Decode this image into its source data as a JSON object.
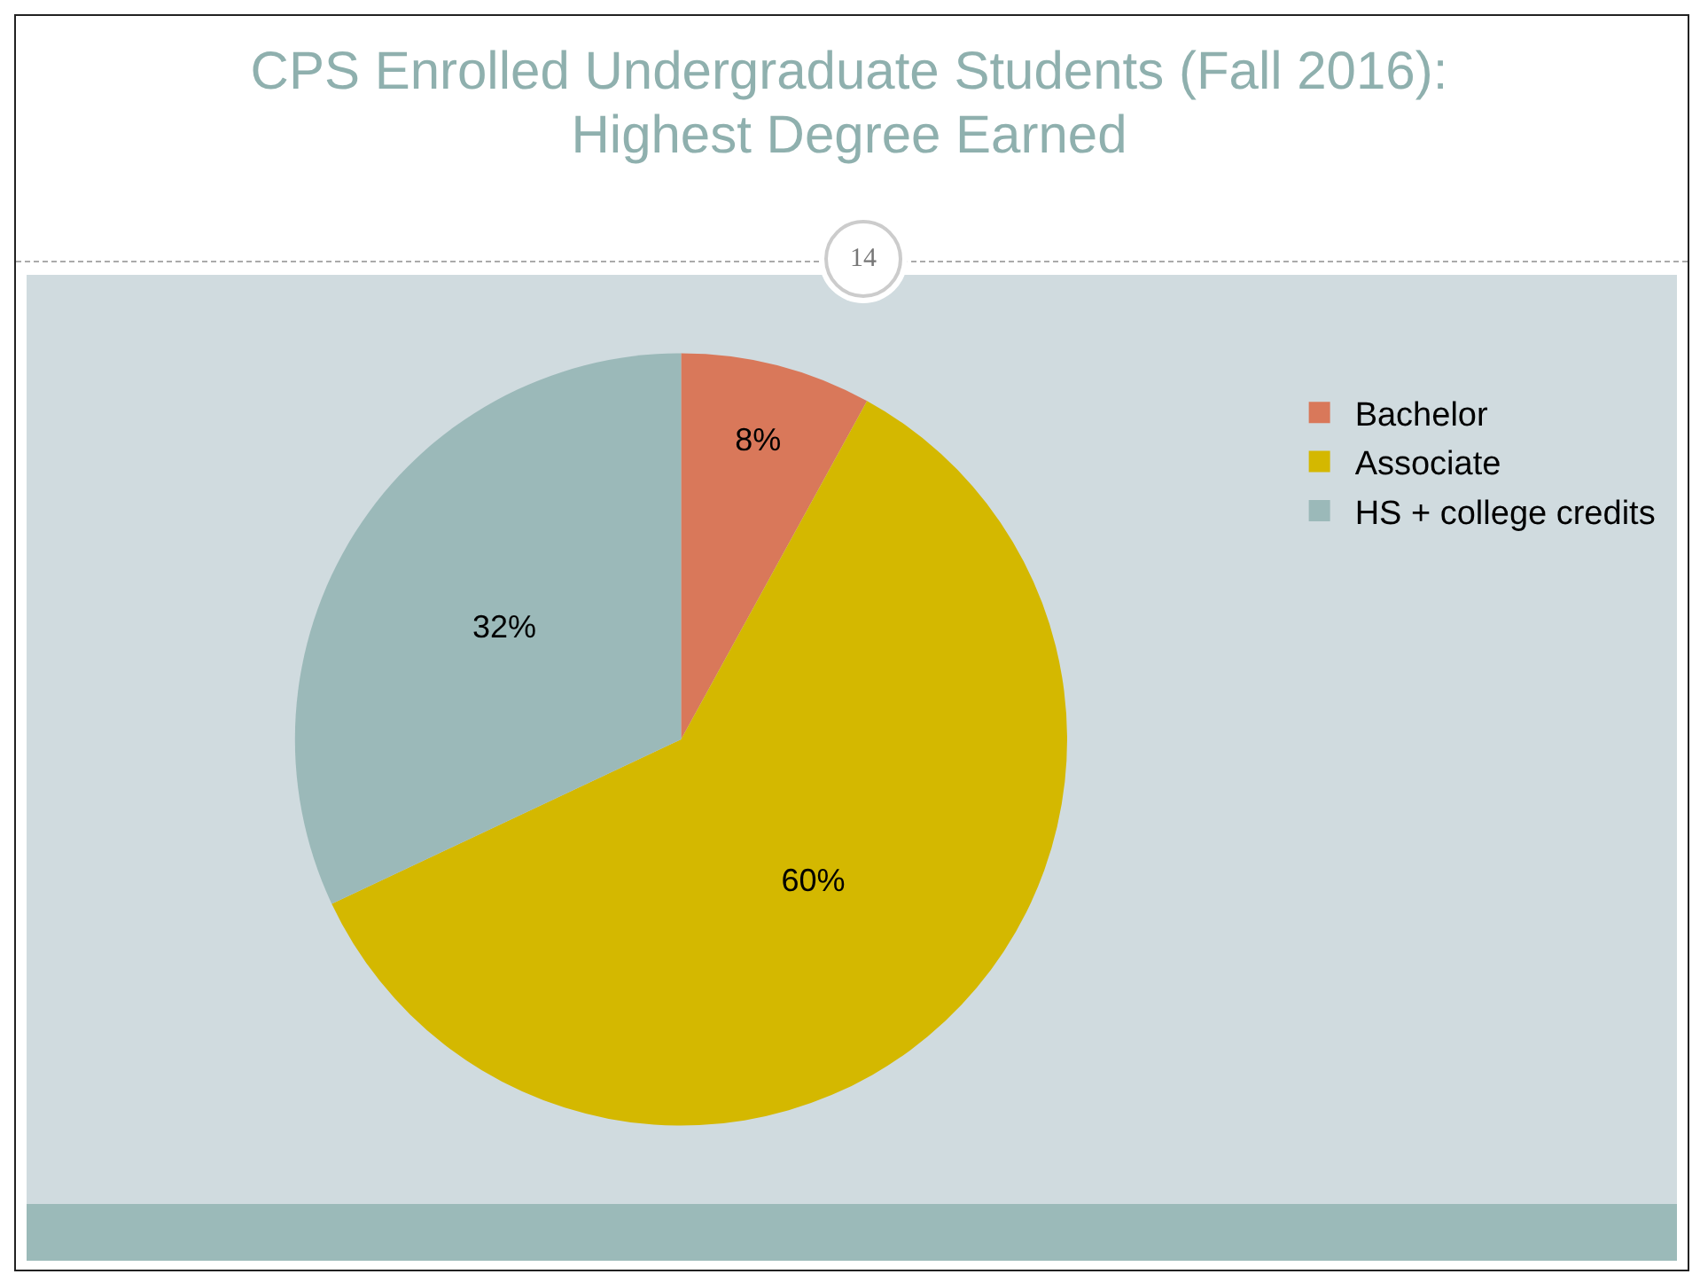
{
  "chart_data": {
    "type": "pie",
    "title": "CPS Enrolled Undergraduate Students (Fall 2016): Highest Degree Earned",
    "categories": [
      "Bachelor",
      "Associate",
      "HS + college credits"
    ],
    "values": [
      8,
      60,
      32
    ],
    "colors": [
      "#d9785a",
      "#d4b800",
      "#9bb9b9"
    ],
    "value_labels": [
      "8%",
      "60%",
      "32%"
    ],
    "legend": "top right",
    "annotations": [
      "14"
    ]
  }
}
